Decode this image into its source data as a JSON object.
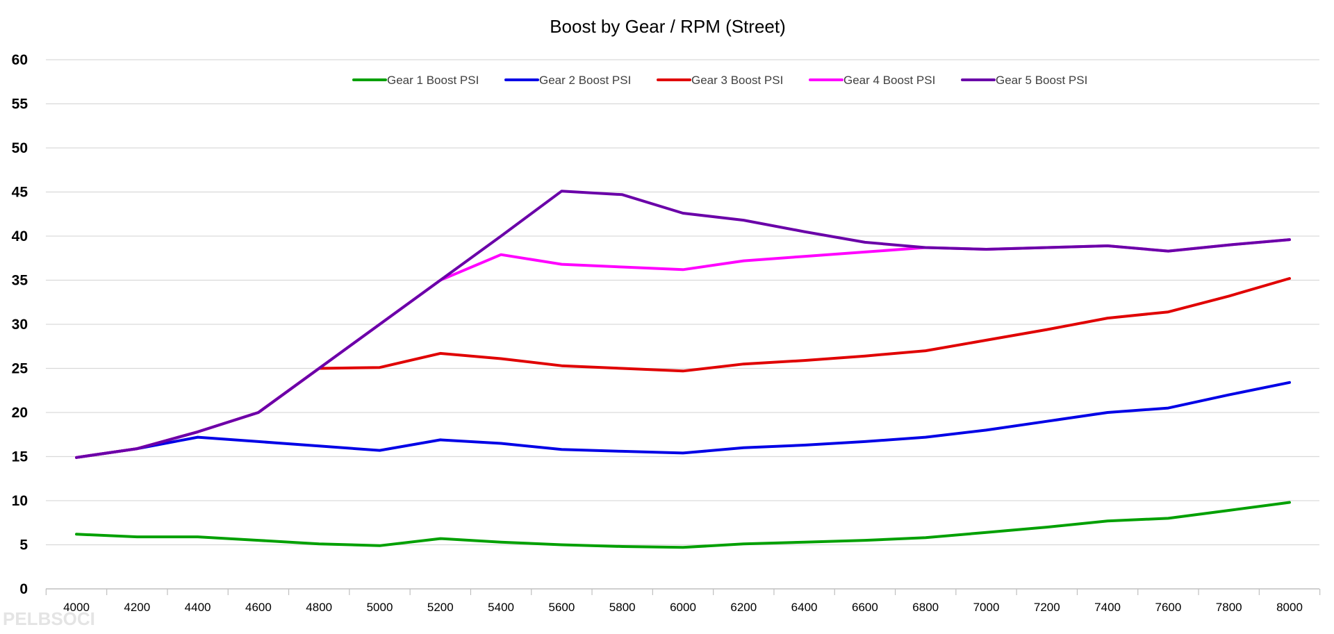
{
  "chart_data": {
    "type": "line",
    "title": "Boost by Gear / RPM (Street)",
    "xlabel": "",
    "ylabel": "",
    "ylim": [
      0,
      60
    ],
    "yticks": [
      "0",
      "5",
      "10",
      "15",
      "20",
      "25",
      "30",
      "35",
      "40",
      "45",
      "50",
      "55",
      "60"
    ],
    "categories": [
      "4000",
      "4200",
      "4400",
      "4600",
      "4800",
      "5000",
      "5200",
      "5400",
      "5600",
      "5800",
      "6000",
      "6200",
      "6400",
      "6600",
      "6800",
      "7000",
      "7200",
      "7400",
      "7600",
      "7800",
      "8000"
    ],
    "grid": true,
    "legend_position": "top",
    "series": [
      {
        "name": "Gear 1 Boost PSI",
        "color": "#00a000",
        "values": [
          6.2,
          5.9,
          5.9,
          5.5,
          5.1,
          4.9,
          5.7,
          5.3,
          5.0,
          4.8,
          4.7,
          5.1,
          5.3,
          5.5,
          5.8,
          6.4,
          7.0,
          7.7,
          8.0,
          8.9,
          9.8
        ]
      },
      {
        "name": "Gear 2 Boost PSI",
        "color": "#0000e6",
        "values": [
          14.9,
          15.9,
          17.2,
          16.7,
          16.2,
          15.7,
          16.9,
          16.5,
          15.8,
          15.6,
          15.4,
          16.0,
          16.3,
          16.7,
          17.2,
          18.0,
          19.0,
          20.0,
          20.5,
          22.0,
          23.4
        ]
      },
      {
        "name": "Gear 3 Boost PSI",
        "color": "#e00000",
        "values": [
          14.9,
          15.9,
          17.8,
          20.0,
          25.0,
          25.1,
          26.7,
          26.1,
          25.3,
          25.0,
          24.7,
          25.5,
          25.9,
          26.4,
          27.0,
          28.2,
          29.4,
          30.7,
          31.4,
          33.2,
          35.2
        ]
      },
      {
        "name": "Gear 4 Boost PSI",
        "color": "#ff00ff",
        "values": [
          14.9,
          15.9,
          17.8,
          20.0,
          25.0,
          30.0,
          35.0,
          37.9,
          36.8,
          36.5,
          36.2,
          37.2,
          37.7,
          38.2,
          38.7,
          38.5,
          38.7,
          38.9,
          38.3,
          39.0,
          39.6
        ]
      },
      {
        "name": "Gear 5 Boost PSI",
        "color": "#6a00a8",
        "values": [
          14.9,
          15.9,
          17.8,
          20.0,
          25.0,
          30.0,
          35.0,
          40.0,
          45.1,
          44.7,
          42.6,
          41.8,
          40.5,
          39.3,
          38.7,
          38.5,
          38.7,
          38.9,
          38.3,
          39.0,
          39.6
        ]
      }
    ]
  },
  "watermark_text": "PELBSOCI"
}
